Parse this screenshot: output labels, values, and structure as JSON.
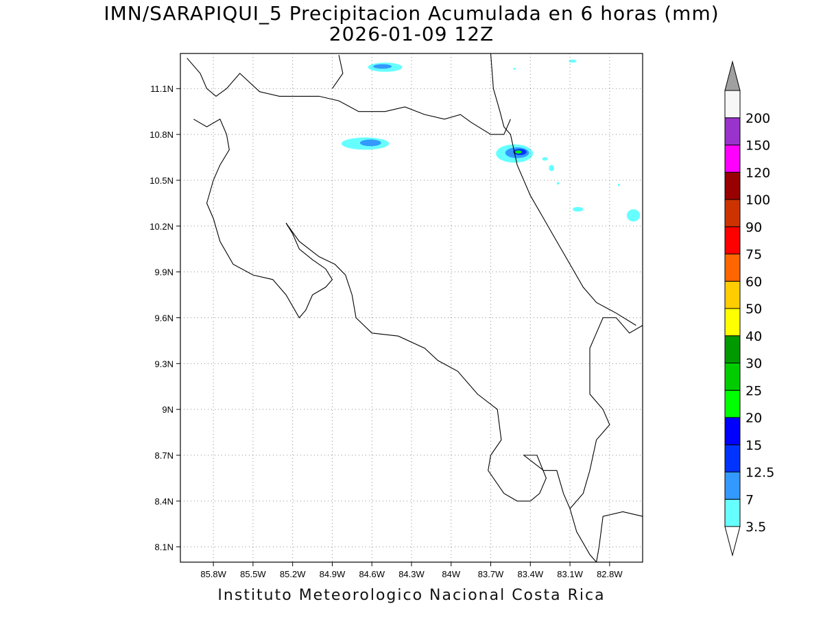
{
  "title": {
    "line1": "IMN/SARAPIQUI_5 Precipitacion Acumulada en 6 horas (mm)",
    "line2": "2026-01-09 12Z"
  },
  "footer": "Instituto Meteorologico Nacional Costa Rica",
  "map": {
    "lon_range": [
      -86.05,
      -82.55
    ],
    "lat_range": [
      8.0,
      11.33
    ],
    "grid_lines": true,
    "lon_ticks": [
      {
        "value": -85.8,
        "label": "85.8W"
      },
      {
        "value": -85.5,
        "label": "85.5W"
      },
      {
        "value": -85.2,
        "label": "85.2W"
      },
      {
        "value": -84.9,
        "label": "84.9W"
      },
      {
        "value": -84.6,
        "label": "84.6W"
      },
      {
        "value": -84.3,
        "label": "84.3W"
      },
      {
        "value": -84.0,
        "label": "84W"
      },
      {
        "value": -83.7,
        "label": "83.7W"
      },
      {
        "value": -83.4,
        "label": "83.4W"
      },
      {
        "value": -83.1,
        "label": "83.1W"
      },
      {
        "value": -82.8,
        "label": "82.8W"
      }
    ],
    "lat_ticks": [
      {
        "value": 11.1,
        "label": "11.1N"
      },
      {
        "value": 10.8,
        "label": "10.8N"
      },
      {
        "value": 10.5,
        "label": "10.5N"
      },
      {
        "value": 10.2,
        "label": "10.2N"
      },
      {
        "value": 9.9,
        "label": "9.9N"
      },
      {
        "value": 9.6,
        "label": "9.6N"
      },
      {
        "value": 9.3,
        "label": "9.3N"
      },
      {
        "value": 9.0,
        "label": "9N"
      },
      {
        "value": 8.7,
        "label": "8.7N"
      },
      {
        "value": 8.4,
        "label": "8.4N"
      },
      {
        "value": 8.1,
        "label": "8.1N"
      }
    ]
  },
  "colorbar": {
    "levels": [
      "3.5",
      "7",
      "12.5",
      "15",
      "20",
      "25",
      "30",
      "40",
      "50",
      "60",
      "75",
      "90",
      "100",
      "120",
      "150",
      "200"
    ],
    "colors": [
      "#66ffff",
      "#3399ff",
      "#0033ff",
      "#0000ff",
      "#00ff00",
      "#00cc00",
      "#009900",
      "#ffff00",
      "#ffcc00",
      "#ff6600",
      "#ff0000",
      "#cc3300",
      "#990000",
      "#ff00ff",
      "#9933cc",
      "#f7f7f7"
    ],
    "top_triangle_color": "#a0a0a0",
    "bottom_triangle_color": "#ffffff"
  },
  "precip_cells": [
    {
      "lon": -84.5,
      "lat": 11.24,
      "rx_deg": 0.13,
      "ry_deg": 0.03,
      "level": "3.5"
    },
    {
      "lon": -84.52,
      "lat": 11.245,
      "rx_deg": 0.07,
      "ry_deg": 0.015,
      "level": "7"
    },
    {
      "lon": -84.65,
      "lat": 10.74,
      "rx_deg": 0.18,
      "ry_deg": 0.04,
      "level": "3.5"
    },
    {
      "lon": -84.61,
      "lat": 10.745,
      "rx_deg": 0.08,
      "ry_deg": 0.022,
      "level": "7"
    },
    {
      "lon": -83.52,
      "lat": 10.675,
      "rx_deg": 0.14,
      "ry_deg": 0.06,
      "level": "3.5"
    },
    {
      "lon": -83.5,
      "lat": 10.68,
      "rx_deg": 0.09,
      "ry_deg": 0.035,
      "level": "7"
    },
    {
      "lon": -83.48,
      "lat": 10.685,
      "rx_deg": 0.05,
      "ry_deg": 0.02,
      "level": "12.5"
    },
    {
      "lon": -83.49,
      "lat": 10.685,
      "rx_deg": 0.025,
      "ry_deg": 0.01,
      "level": "20"
    },
    {
      "lon": -83.29,
      "lat": 10.64,
      "rx_deg": 0.02,
      "ry_deg": 0.012,
      "level": "3.5"
    },
    {
      "lon": -83.24,
      "lat": 10.58,
      "rx_deg": 0.02,
      "ry_deg": 0.02,
      "level": "3.5"
    },
    {
      "lon": -83.19,
      "lat": 10.48,
      "rx_deg": 0.01,
      "ry_deg": 0.008,
      "level": "3.5"
    },
    {
      "lon": -83.04,
      "lat": 10.31,
      "rx_deg": 0.04,
      "ry_deg": 0.015,
      "level": "3.5"
    },
    {
      "lon": -82.62,
      "lat": 10.27,
      "rx_deg": 0.05,
      "ry_deg": 0.04,
      "level": "3.5"
    },
    {
      "lon": -83.08,
      "lat": 11.28,
      "rx_deg": 0.03,
      "ry_deg": 0.01,
      "level": "3.5"
    },
    {
      "lon": -83.52,
      "lat": 11.23,
      "rx_deg": 0.01,
      "ry_deg": 0.006,
      "level": "3.5"
    },
    {
      "lon": -82.73,
      "lat": 10.47,
      "rx_deg": 0.008,
      "ry_deg": 0.008,
      "level": "3.5"
    }
  ],
  "coastlines": [
    [
      [
        -86.0,
        11.3
      ],
      [
        -85.9,
        11.2
      ],
      [
        -85.85,
        11.1
      ],
      [
        -85.78,
        11.05
      ],
      [
        -85.7,
        11.1
      ],
      [
        -85.6,
        11.2
      ],
      [
        -85.45,
        11.08
      ],
      [
        -85.3,
        11.05
      ],
      [
        -85.15,
        11.05
      ],
      [
        -85.0,
        11.05
      ],
      [
        -84.85,
        11.02
      ],
      [
        -84.7,
        10.95
      ],
      [
        -84.5,
        10.95
      ],
      [
        -84.35,
        10.98
      ],
      [
        -84.2,
        10.93
      ],
      [
        -84.05,
        10.9
      ],
      [
        -83.93,
        10.93
      ],
      [
        -83.85,
        10.88
      ],
      [
        -83.7,
        10.8
      ],
      [
        -83.6,
        10.8
      ],
      [
        -83.55,
        10.9
      ]
    ],
    [
      [
        -84.85,
        11.32
      ],
      [
        -84.82,
        11.2
      ],
      [
        -84.9,
        11.1
      ]
    ],
    [
      [
        -83.7,
        11.33
      ],
      [
        -83.68,
        11.1
      ],
      [
        -83.63,
        10.95
      ],
      [
        -83.6,
        10.85
      ],
      [
        -83.55,
        10.8
      ],
      [
        -83.5,
        10.6
      ],
      [
        -83.4,
        10.4
      ],
      [
        -83.3,
        10.25
      ],
      [
        -83.2,
        10.1
      ],
      [
        -83.1,
        9.95
      ],
      [
        -83.0,
        9.8
      ],
      [
        -82.9,
        9.7
      ],
      [
        -82.75,
        9.63
      ],
      [
        -82.6,
        9.55
      ]
    ],
    [
      [
        -85.95,
        10.9
      ],
      [
        -85.85,
        10.85
      ],
      [
        -85.75,
        10.9
      ],
      [
        -85.7,
        10.8
      ],
      [
        -85.68,
        10.7
      ],
      [
        -85.75,
        10.6
      ],
      [
        -85.8,
        10.5
      ],
      [
        -85.85,
        10.35
      ],
      [
        -85.8,
        10.25
      ],
      [
        -85.75,
        10.1
      ],
      [
        -85.65,
        9.95
      ],
      [
        -85.5,
        9.88
      ],
      [
        -85.35,
        9.85
      ],
      [
        -85.25,
        9.75
      ],
      [
        -85.15,
        9.6
      ],
      [
        -85.1,
        9.65
      ],
      [
        -85.05,
        9.75
      ],
      [
        -84.95,
        9.8
      ],
      [
        -84.9,
        9.85
      ],
      [
        -84.95,
        9.92
      ],
      [
        -85.05,
        9.98
      ],
      [
        -85.15,
        10.05
      ],
      [
        -85.2,
        10.15
      ],
      [
        -85.25,
        10.22
      ]
    ],
    [
      [
        -85.25,
        10.22
      ],
      [
        -85.15,
        10.1
      ],
      [
        -85.0,
        10.0
      ],
      [
        -84.88,
        9.95
      ],
      [
        -84.8,
        9.88
      ],
      [
        -84.75,
        9.75
      ],
      [
        -84.72,
        9.6
      ],
      [
        -84.6,
        9.5
      ],
      [
        -84.4,
        9.48
      ],
      [
        -84.2,
        9.4
      ],
      [
        -84.1,
        9.32
      ],
      [
        -83.95,
        9.25
      ],
      [
        -83.8,
        9.1
      ],
      [
        -83.65,
        9.0
      ],
      [
        -83.62,
        8.8
      ],
      [
        -83.7,
        8.7
      ],
      [
        -83.72,
        8.6
      ],
      [
        -83.6,
        8.45
      ],
      [
        -83.5,
        8.4
      ],
      [
        -83.4,
        8.4
      ],
      [
        -83.33,
        8.45
      ],
      [
        -83.28,
        8.55
      ],
      [
        -83.35,
        8.7
      ],
      [
        -83.45,
        8.7
      ],
      [
        -83.3,
        8.6
      ],
      [
        -83.2,
        8.6
      ],
      [
        -83.15,
        8.45
      ],
      [
        -83.1,
        8.35
      ],
      [
        -83.05,
        8.2
      ],
      [
        -82.95,
        8.05
      ],
      [
        -82.9,
        8.0
      ]
    ],
    [
      [
        -82.9,
        8.0
      ],
      [
        -82.88,
        8.1
      ],
      [
        -82.85,
        8.3
      ],
      [
        -82.7,
        8.33
      ],
      [
        -82.55,
        8.3
      ]
    ],
    [
      [
        -82.55,
        9.55
      ],
      [
        -82.65,
        9.5
      ],
      [
        -82.75,
        9.6
      ],
      [
        -82.85,
        9.6
      ],
      [
        -82.9,
        9.5
      ],
      [
        -82.95,
        9.4
      ],
      [
        -82.95,
        9.1
      ],
      [
        -82.85,
        9.0
      ],
      [
        -82.8,
        8.9
      ],
      [
        -82.9,
        8.8
      ],
      [
        -82.95,
        8.6
      ],
      [
        -83.0,
        8.45
      ],
      [
        -83.1,
        8.35
      ]
    ]
  ]
}
